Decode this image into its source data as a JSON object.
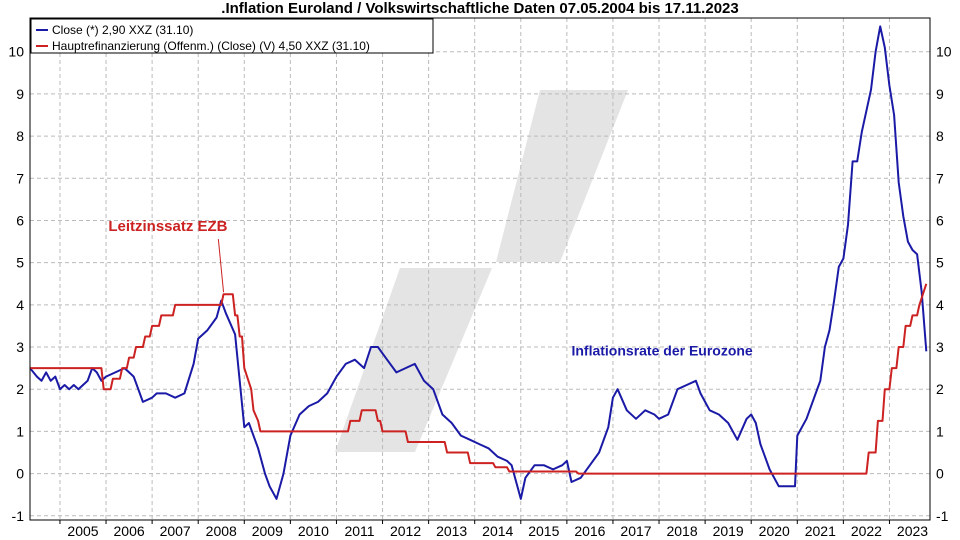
{
  "chart_data": {
    "type": "line",
    "title": ".Inflation Euroland / Volkswirtschaftliche Daten 07.05.2004 bis 17.11.2023",
    "xlim": [
      2004.35,
      2023.88
    ],
    "ylim": [
      -1.1,
      10.8
    ],
    "y_ticks": [
      -1,
      0,
      1,
      2,
      3,
      4,
      5,
      6,
      7,
      8,
      9,
      10
    ],
    "x_ticks": [
      2005,
      2006,
      2007,
      2008,
      2009,
      2010,
      2011,
      2012,
      2013,
      2014,
      2015,
      2016,
      2017,
      2018,
      2019,
      2020,
      2021,
      2022,
      2023
    ],
    "grid": true,
    "legend_position": "top-left",
    "series": [
      {
        "name": "Close (*) 2,90 XXZ (31.10)",
        "color": "#1a1aa6",
        "x": [
          2004.35,
          2004.5,
          2004.6,
          2004.7,
          2004.8,
          2004.9,
          2005.0,
          2005.1,
          2005.2,
          2005.3,
          2005.4,
          2005.5,
          2005.6,
          2005.7,
          2005.8,
          2005.9,
          2006.0,
          2006.2,
          2006.4,
          2006.6,
          2006.8,
          2007.0,
          2007.1,
          2007.3,
          2007.5,
          2007.7,
          2007.9,
          2008.0,
          2008.2,
          2008.4,
          2008.5,
          2008.6,
          2008.8,
          2008.9,
          2009.0,
          2009.1,
          2009.3,
          2009.45,
          2009.55,
          2009.7,
          2009.85,
          2010.0,
          2010.2,
          2010.4,
          2010.6,
          2010.8,
          2011.0,
          2011.2,
          2011.4,
          2011.6,
          2011.75,
          2011.9,
          2012.1,
          2012.3,
          2012.5,
          2012.7,
          2012.9,
          2013.1,
          2013.3,
          2013.5,
          2013.7,
          2013.9,
          2014.1,
          2014.3,
          2014.5,
          2014.7,
          2014.8,
          2014.9,
          2015.0,
          2015.1,
          2015.3,
          2015.5,
          2015.7,
          2015.9,
          2016.0,
          2016.1,
          2016.3,
          2016.5,
          2016.7,
          2016.9,
          2017.0,
          2017.1,
          2017.3,
          2017.5,
          2017.7,
          2017.9,
          2018.0,
          2018.2,
          2018.4,
          2018.6,
          2018.8,
          2018.9,
          2019.1,
          2019.3,
          2019.5,
          2019.7,
          2019.9,
          2020.0,
          2020.1,
          2020.2,
          2020.4,
          2020.6,
          2020.8,
          2020.95,
          2021.0,
          2021.2,
          2021.4,
          2021.5,
          2021.6,
          2021.7,
          2021.8,
          2021.9,
          2022.0,
          2022.1,
          2022.2,
          2022.3,
          2022.4,
          2022.5,
          2022.6,
          2022.7,
          2022.8,
          2022.9,
          2023.0,
          2023.1,
          2023.2,
          2023.3,
          2023.4,
          2023.5,
          2023.6,
          2023.7,
          2023.8
        ],
        "values": [
          2.5,
          2.3,
          2.2,
          2.4,
          2.2,
          2.3,
          2.0,
          2.1,
          2.0,
          2.1,
          2.0,
          2.1,
          2.2,
          2.5,
          2.4,
          2.2,
          2.3,
          2.4,
          2.5,
          2.3,
          1.7,
          1.8,
          1.9,
          1.9,
          1.8,
          1.9,
          2.6,
          3.2,
          3.4,
          3.7,
          4.1,
          3.8,
          3.3,
          2.2,
          1.1,
          1.2,
          0.6,
          0.0,
          -0.3,
          -0.6,
          0.0,
          0.9,
          1.4,
          1.6,
          1.7,
          1.9,
          2.3,
          2.6,
          2.7,
          2.5,
          3.0,
          3.0,
          2.7,
          2.4,
          2.5,
          2.6,
          2.2,
          2.0,
          1.4,
          1.2,
          0.9,
          0.8,
          0.7,
          0.6,
          0.4,
          0.3,
          0.2,
          -0.2,
          -0.6,
          -0.1,
          0.2,
          0.2,
          0.1,
          0.2,
          0.3,
          -0.2,
          -0.1,
          0.2,
          0.5,
          1.1,
          1.8,
          2.0,
          1.5,
          1.3,
          1.5,
          1.4,
          1.3,
          1.4,
          2.0,
          2.1,
          2.2,
          1.9,
          1.5,
          1.4,
          1.2,
          0.8,
          1.3,
          1.4,
          1.2,
          0.7,
          0.1,
          -0.3,
          -0.3,
          -0.3,
          0.9,
          1.3,
          1.9,
          2.2,
          3.0,
          3.4,
          4.1,
          4.9,
          5.1,
          5.9,
          7.4,
          7.4,
          8.1,
          8.6,
          9.1,
          10.0,
          10.6,
          10.1,
          9.2,
          8.5,
          6.9,
          6.1,
          5.5,
          5.3,
          5.2,
          4.3,
          2.9
        ]
      },
      {
        "name": "Hauptrefinanzierung (Offenm.) (Close) (V) 4,50 XXZ (31.10)",
        "color": "#cc2222",
        "x": [
          2004.35,
          2005.9,
          2005.95,
          2006.1,
          2006.15,
          2006.3,
          2006.35,
          2006.45,
          2006.5,
          2006.6,
          2006.65,
          2006.8,
          2006.85,
          2006.95,
          2007.0,
          2007.15,
          2007.2,
          2007.45,
          2007.5,
          2008.5,
          2008.55,
          2008.75,
          2008.8,
          2008.85,
          2008.9,
          2008.95,
          2009.0,
          2009.15,
          2009.2,
          2009.3,
          2009.35,
          2011.25,
          2011.3,
          2011.5,
          2011.55,
          2011.85,
          2011.9,
          2011.95,
          2012.0,
          2012.5,
          2012.55,
          2013.35,
          2013.4,
          2013.85,
          2013.9,
          2014.4,
          2014.45,
          2014.7,
          2014.75,
          2016.2,
          2016.25,
          2022.5,
          2022.55,
          2022.7,
          2022.75,
          2022.85,
          2022.9,
          2023.0,
          2023.05,
          2023.15,
          2023.2,
          2023.3,
          2023.35,
          2023.45,
          2023.5,
          2023.6,
          2023.65,
          2023.8
        ],
        "values": [
          2.5,
          2.5,
          2.0,
          2.0,
          2.25,
          2.25,
          2.5,
          2.5,
          2.75,
          2.75,
          3.0,
          3.0,
          3.25,
          3.25,
          3.5,
          3.5,
          3.75,
          3.75,
          4.0,
          4.0,
          4.25,
          4.25,
          3.75,
          3.75,
          3.25,
          3.25,
          2.5,
          2.0,
          1.5,
          1.25,
          1.0,
          1.0,
          1.25,
          1.25,
          1.5,
          1.5,
          1.25,
          1.25,
          1.0,
          1.0,
          0.75,
          0.75,
          0.5,
          0.5,
          0.25,
          0.25,
          0.15,
          0.15,
          0.05,
          0.05,
          0.0,
          0.0,
          0.5,
          0.5,
          1.25,
          1.25,
          2.0,
          2.0,
          2.5,
          2.5,
          3.0,
          3.0,
          3.5,
          3.5,
          3.75,
          3.75,
          4.0,
          4.5
        ]
      }
    ],
    "annotations": [
      {
        "text": "Leitzinssatz EZB",
        "color": "#cc2222",
        "x": 2006.05,
        "y": 5.75,
        "point_x": 2008.55,
        "point_y": 4.3
      },
      {
        "text": "Inflationsrate der Eurozone",
        "color": "#1a1aa6",
        "x": 2016.1,
        "y": 2.8
      }
    ]
  }
}
